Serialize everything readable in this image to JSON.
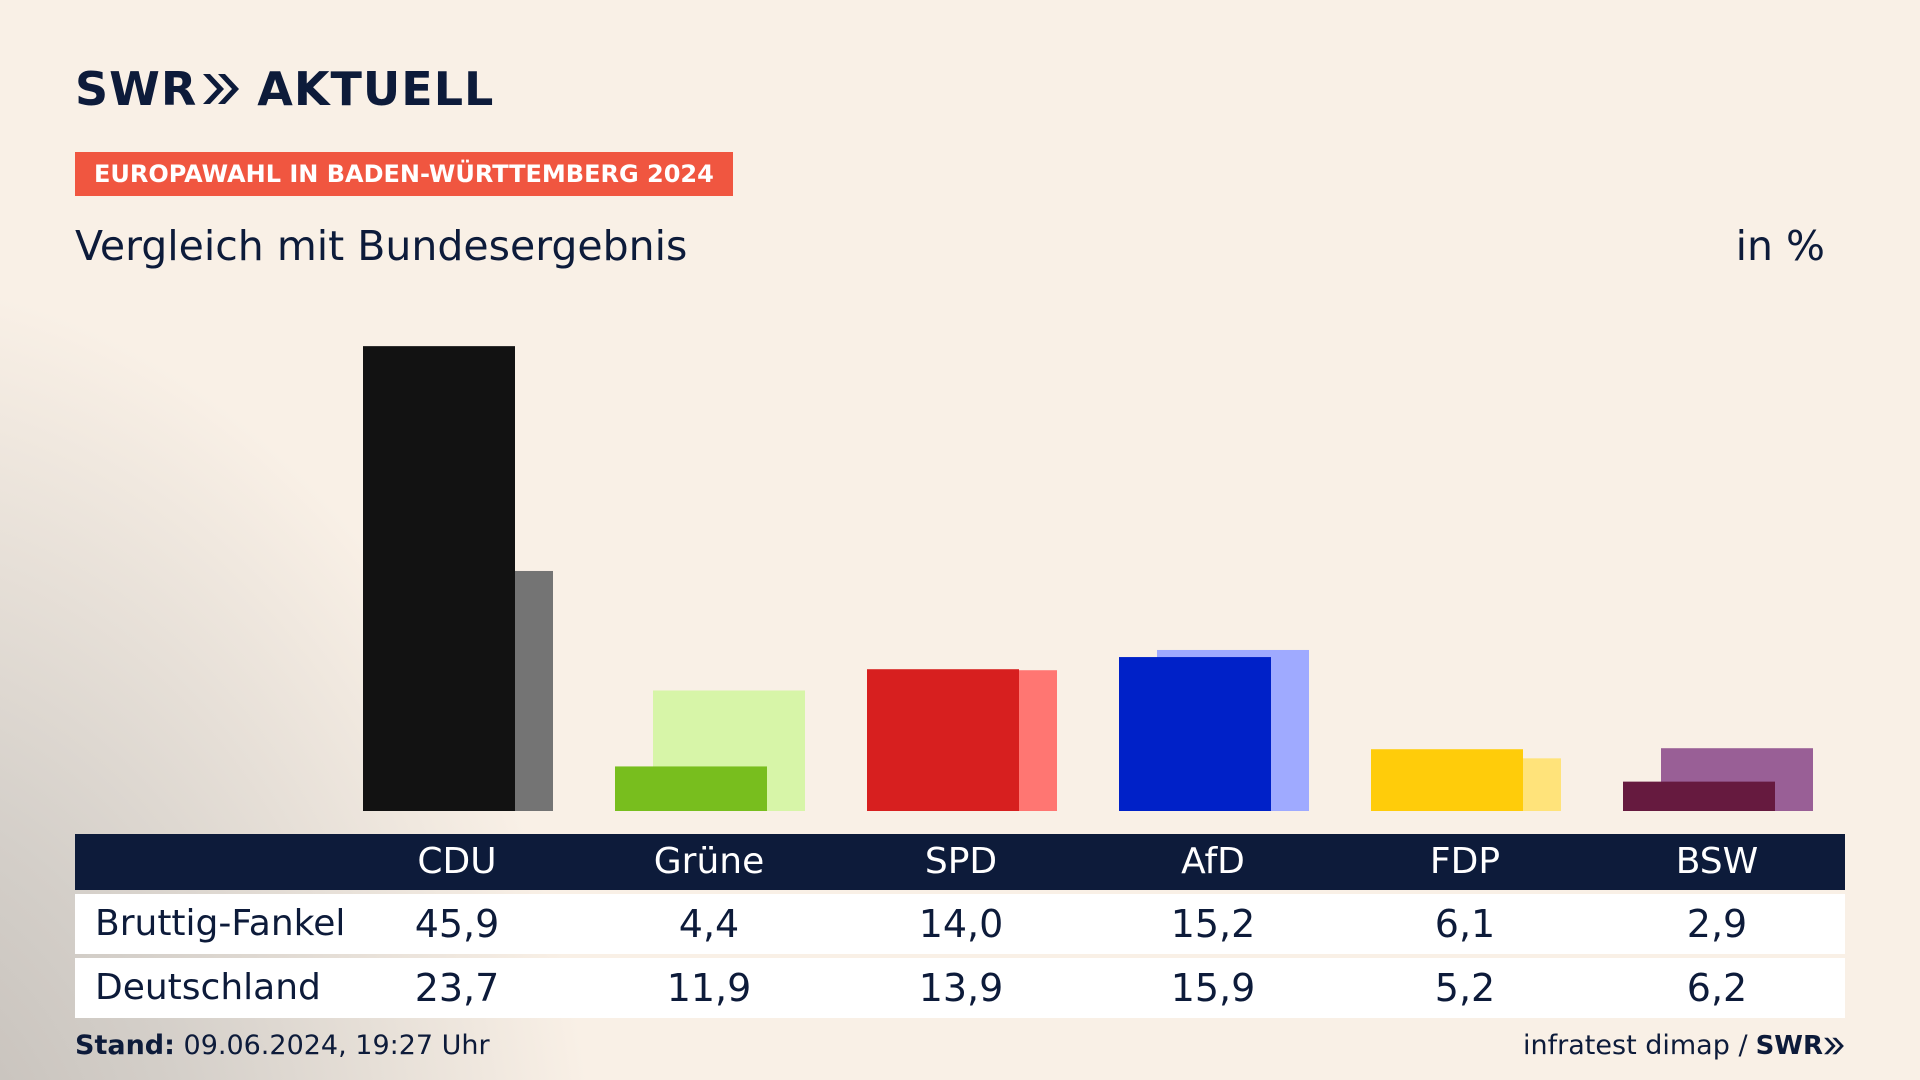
{
  "logo": {
    "text1": "SWR",
    "text2": "AKTUELL",
    "icon": "double-chevron-icon"
  },
  "badge": "EUROPAWAHL IN BADEN-WÜRTTEMBERG 2024",
  "subtitle": "Vergleich mit Bundesergebnis",
  "unit": "in %",
  "footer": {
    "stand_label": "Stand:",
    "stand_value": "09.06.2024, 19:27 Uhr",
    "source": "infratest dimap /",
    "brand": "SWR"
  },
  "table": {
    "headers": [
      "CDU",
      "Grüne",
      "SPD",
      "AfD",
      "FDP",
      "BSW"
    ],
    "rows": [
      {
        "label": "Bruttig-Fankel",
        "values": [
          "45,9",
          "4,4",
          "14,0",
          "15,2",
          "6,1",
          "2,9"
        ]
      },
      {
        "label": "Deutschland",
        "values": [
          "23,7",
          "11,9",
          "13,9",
          "15,9",
          "5,2",
          "6,2"
        ]
      }
    ]
  },
  "chart_data": {
    "type": "bar",
    "categories": [
      "CDU",
      "Grüne",
      "SPD",
      "AfD",
      "FDP",
      "BSW"
    ],
    "series": [
      {
        "name": "Bruttig-Fankel",
        "values": [
          45.9,
          4.4,
          14.0,
          15.2,
          6.1,
          2.9
        ]
      },
      {
        "name": "Deutschland",
        "values": [
          23.7,
          11.9,
          13.9,
          15.9,
          5.2,
          6.2
        ]
      }
    ],
    "colors": {
      "primary": [
        "#121212",
        "#78be1e",
        "#d71f1f",
        "#0021c8",
        "#ffcc0a",
        "#661a3f"
      ],
      "secondary": [
        "#747474",
        "#d7f5a8",
        "#ff7672",
        "#9faaff",
        "#ffe37a",
        "#995f96"
      ]
    },
    "ylim": [
      0,
      47
    ],
    "grid": false
  }
}
